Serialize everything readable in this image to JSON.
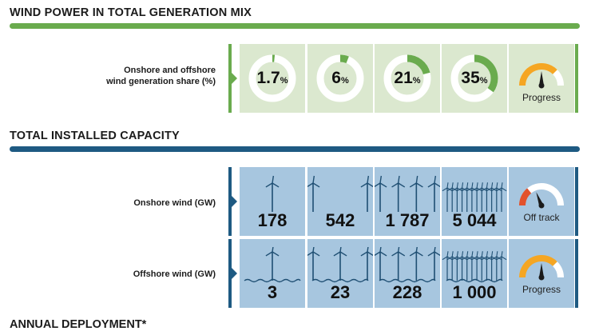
{
  "colors": {
    "green": "#6aab4e",
    "green_bg": "#dbe8cf",
    "blue": "#1e5a82",
    "blue_bg": "#a7c6df",
    "dark": "#1f4f73"
  },
  "section_wind_share": {
    "title": "WIND POWER IN TOTAL GENERATION MIX",
    "row_label": [
      "Onshore and offshore",
      "wind generation share (%)"
    ],
    "values": [
      {
        "value": "1.7",
        "unit": "%",
        "fraction": 0.017
      },
      {
        "value": "6",
        "unit": "%",
        "fraction": 0.06
      },
      {
        "value": "21",
        "unit": "%",
        "fraction": 0.21
      },
      {
        "value": "35",
        "unit": "%",
        "fraction": 0.35
      }
    ],
    "gauge": {
      "label": "Progress",
      "status": "progress"
    }
  },
  "section_capacity": {
    "title": "TOTAL INSTALLED CAPACITY",
    "onshore": {
      "row_label": "Onshore wind (GW)",
      "values": [
        "178",
        "542",
        "1 787",
        "5 044"
      ],
      "turbine_icons": [
        1,
        2,
        4,
        12
      ],
      "gauge": {
        "label": "Off track",
        "status": "off-track"
      }
    },
    "offshore": {
      "row_label": "Offshore wind (GW)",
      "values": [
        "3",
        "23",
        "228",
        "1 000"
      ],
      "turbine_icons": [
        1,
        3,
        4,
        12
      ],
      "gauge": {
        "label": "Progress",
        "status": "progress"
      }
    }
  },
  "section_annual": {
    "title": "ANNUAL DEPLOYMENT*"
  }
}
